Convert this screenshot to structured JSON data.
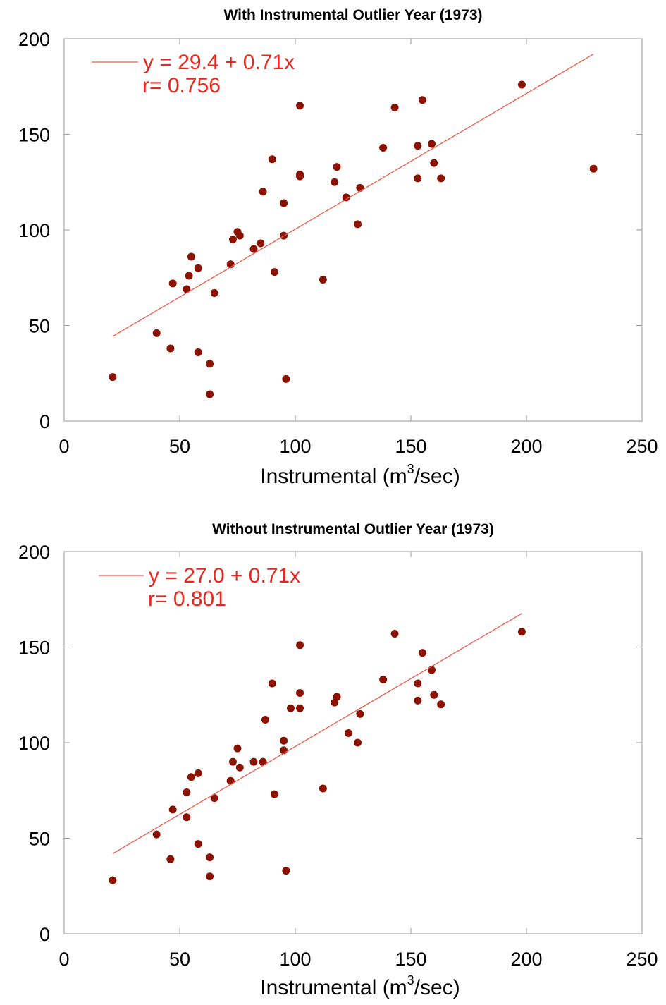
{
  "chart_data": [
    {
      "type": "scatter",
      "title": "With Instrumental Outlier Year (1973)",
      "xlabel": "Instrumental (m3/sec)",
      "xlabel_parts": {
        "before": "Instrumental (m",
        "sup": "3",
        "after": "/sec)"
      },
      "ylabel": "",
      "xlim": [
        0,
        250
      ],
      "ylim": [
        0,
        200
      ],
      "xticks": [
        0,
        50,
        100,
        150,
        200,
        250
      ],
      "yticks": [
        0,
        50,
        100,
        150,
        200
      ],
      "grid": false,
      "legend_position": "top-left",
      "series": [
        {
          "type": "scatter",
          "color": "#8b1200",
          "x": [
            21,
            40,
            46,
            47,
            53,
            54,
            55,
            58,
            58,
            63,
            63,
            65,
            72,
            73,
            75,
            76,
            82,
            85,
            86,
            90,
            91,
            95,
            95,
            96,
            102,
            102,
            102,
            112,
            117,
            118,
            122,
            127,
            128,
            138,
            143,
            153,
            153,
            155,
            159,
            160,
            163,
            198,
            229
          ],
          "y": [
            23,
            46,
            38,
            72,
            69,
            76,
            86,
            80,
            36,
            30,
            14,
            67,
            82,
            95,
            99,
            97,
            90,
            93,
            120,
            137,
            78,
            114,
            97,
            22,
            129,
            128,
            165,
            74,
            125,
            133,
            117,
            103,
            122,
            143,
            164,
            144,
            127,
            168,
            145,
            135,
            127,
            176,
            132
          ]
        },
        {
          "type": "line",
          "name": "y = 29.4 + 0.71x",
          "color": "#f05a4a",
          "x": [
            21,
            229
          ],
          "y": [
            44.3,
            192
          ]
        }
      ],
      "annotations": {
        "equation": "y = 29.4 + 0.71x",
        "r": "r= 0.756"
      }
    },
    {
      "type": "scatter",
      "title": "Without Instrumental Outlier Year (1973)",
      "xlabel": "Instrumental (m3/sec)",
      "xlabel_parts": {
        "before": "Instrumental (m",
        "sup": "3",
        "after": "/sec)"
      },
      "ylabel": "",
      "xlim": [
        0,
        250
      ],
      "ylim": [
        0,
        200
      ],
      "xticks": [
        0,
        50,
        100,
        150,
        200,
        250
      ],
      "yticks": [
        0,
        50,
        100,
        150,
        200
      ],
      "grid": false,
      "legend_position": "top-left",
      "series": [
        {
          "type": "scatter",
          "color": "#8b1200",
          "x": [
            21,
            40,
            46,
            47,
            53,
            53,
            55,
            58,
            58,
            63,
            63,
            65,
            72,
            73,
            75,
            76,
            82,
            86,
            87,
            90,
            91,
            95,
            95,
            96,
            98,
            102,
            102,
            102,
            112,
            117,
            118,
            123,
            127,
            128,
            138,
            143,
            153,
            153,
            155,
            159,
            160,
            163,
            198
          ],
          "y": [
            28,
            52,
            39,
            65,
            61,
            74,
            82,
            84,
            47,
            40,
            30,
            71,
            80,
            90,
            97,
            87,
            90,
            90,
            112,
            131,
            73,
            101,
            96,
            33,
            118,
            118,
            126,
            151,
            76,
            121,
            124,
            105,
            100,
            115,
            133,
            157,
            131,
            122,
            147,
            138,
            125,
            120,
            158
          ]
        },
        {
          "type": "line",
          "name": "y = 27.0 + 0.71x",
          "color": "#f05a4a",
          "x": [
            21,
            198
          ],
          "y": [
            41.9,
            167.6
          ]
        }
      ],
      "annotations": {
        "equation": "y = 27.0 + 0.71x",
        "r": "r= 0.801"
      }
    }
  ]
}
